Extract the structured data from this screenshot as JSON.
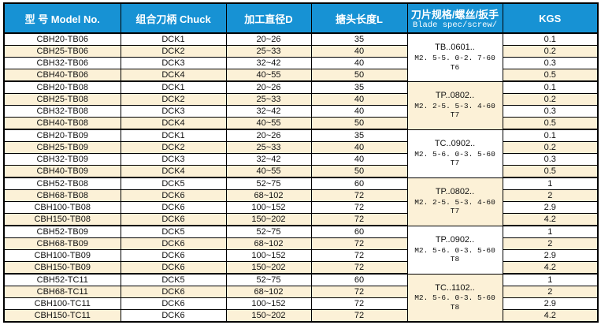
{
  "colors": {
    "header_bg": "#1792d4",
    "header_text": "#ffffff",
    "stripe_bg": "#fcf1d7",
    "border": "#000000"
  },
  "header": {
    "columns": [
      {
        "label": "型 号 Model No."
      },
      {
        "label": "组合刀柄 Chuck"
      },
      {
        "label": "加工直径D"
      },
      {
        "label": "搪头长度L"
      },
      {
        "label": "刀片规格/螺丝/扳手",
        "sub": "Blade spec/screw/"
      },
      {
        "label": "KGS"
      }
    ]
  },
  "groups": [
    {
      "spec": {
        "line1": "TB..0601..",
        "line2": "M2. 5-5. 0-2. 7-60",
        "line3": "T6"
      },
      "spec_highlight": false,
      "rows": [
        {
          "model": "CBH20-TB06",
          "chuck": "DCK1",
          "diameter": "20~26",
          "length": "35",
          "kgs": "0.1"
        },
        {
          "model": "CBH25-TB06",
          "chuck": "DCK2",
          "diameter": "25~33",
          "length": "40",
          "kgs": "0.2"
        },
        {
          "model": "CBH32-TB06",
          "chuck": "DCK3",
          "diameter": "32~42",
          "length": "40",
          "kgs": "0.3"
        },
        {
          "model": "CBH40-TB06",
          "chuck": "DCK4",
          "diameter": "40~55",
          "length": "50",
          "kgs": "0.5"
        }
      ]
    },
    {
      "spec": {
        "line1": "TP..0802..",
        "line2": "M2. 2-5. 5-3. 4-60",
        "line3": "T7"
      },
      "spec_highlight": true,
      "rows": [
        {
          "model": "CBH20-TB08",
          "chuck": "DCK1",
          "diameter": "20~26",
          "length": "35",
          "kgs": "0.1"
        },
        {
          "model": "CBH25-TB08",
          "chuck": "DCK2",
          "diameter": "25~33",
          "length": "40",
          "kgs": "0.2"
        },
        {
          "model": "CBH32-TB08",
          "chuck": "DCK3",
          "diameter": "32~42",
          "length": "40",
          "kgs": "0.3"
        },
        {
          "model": "CBH40-TB08",
          "chuck": "DCK4",
          "diameter": "40~55",
          "length": "50",
          "kgs": "0.5"
        }
      ]
    },
    {
      "spec": {
        "line1": "TC..0902..",
        "line2": "M2. 5-6. 0-3. 5-60",
        "line3": "T7"
      },
      "spec_highlight": false,
      "rows": [
        {
          "model": "CBH20-TB09",
          "chuck": "DCK1",
          "diameter": "20~26",
          "length": "35",
          "kgs": "0.1"
        },
        {
          "model": "CBH25-TB09",
          "chuck": "DCK2",
          "diameter": "25~33",
          "length": "40",
          "kgs": "0.2"
        },
        {
          "model": "CBH32-TB09",
          "chuck": "DCK3",
          "diameter": "32~42",
          "length": "40",
          "kgs": "0.3"
        },
        {
          "model": "CBH40-TB09",
          "chuck": "DCK4",
          "diameter": "40~55",
          "length": "50",
          "kgs": "0.5"
        }
      ]
    },
    {
      "spec": {
        "line1": "TP..0802..",
        "line2": "M2. 2-5. 5-3. 4-60",
        "line3": "T7"
      },
      "spec_highlight": true,
      "rows": [
        {
          "model": "CBH52-TB08",
          "chuck": "DCK5",
          "diameter": "52~75",
          "length": "60",
          "kgs": "1"
        },
        {
          "model": "CBH68-TB08",
          "chuck": "DCK6",
          "diameter": "68~102",
          "length": "72",
          "kgs": "2"
        },
        {
          "model": "CBH100-TB08",
          "chuck": "DCK6",
          "diameter": "100~152",
          "length": "72",
          "kgs": "2.9"
        },
        {
          "model": "CBH150-TB08",
          "chuck": "DCK6",
          "diameter": "150~202",
          "length": "72",
          "kgs": "4.2"
        }
      ]
    },
    {
      "spec": {
        "line1": "TP..0902..",
        "line2": "M2. 5-6. 0-3. 5-60",
        "line3": "T8"
      },
      "spec_highlight": false,
      "rows": [
        {
          "model": "CBH52-TB09",
          "chuck": "DCK5",
          "diameter": "52~75",
          "length": "60",
          "kgs": "1"
        },
        {
          "model": "CBH68-TB09",
          "chuck": "DCK6",
          "diameter": "68~102",
          "length": "72",
          "kgs": "2"
        },
        {
          "model": "CBH100-TB09",
          "chuck": "DCK6",
          "diameter": "100~152",
          "length": "72",
          "kgs": "2.9"
        },
        {
          "model": "CBH150-TB09",
          "chuck": "DCK6",
          "diameter": "150~202",
          "length": "72",
          "kgs": "4.2"
        }
      ]
    },
    {
      "spec": {
        "line1": "TC..1102..",
        "line2": "M2. 5-6. 0-3. 5-60",
        "line3": "T8"
      },
      "spec_highlight": true,
      "rows": [
        {
          "model": "CBH52-TC11",
          "chuck": "DCK5",
          "diameter": "52~75",
          "length": "60",
          "kgs": "1"
        },
        {
          "model": "CBH68-TC11",
          "chuck": "DCK6",
          "diameter": "68~102",
          "length": "72",
          "kgs": "2"
        },
        {
          "model": "CBH100-TC11",
          "chuck": "DCK6",
          "diameter": "100~152",
          "length": "72",
          "kgs": "2.9"
        },
        {
          "model": "CBH150-TC11",
          "chuck": "DCK6",
          "diameter": "150~202",
          "length": "72",
          "kgs": "4.2"
        }
      ]
    }
  ]
}
